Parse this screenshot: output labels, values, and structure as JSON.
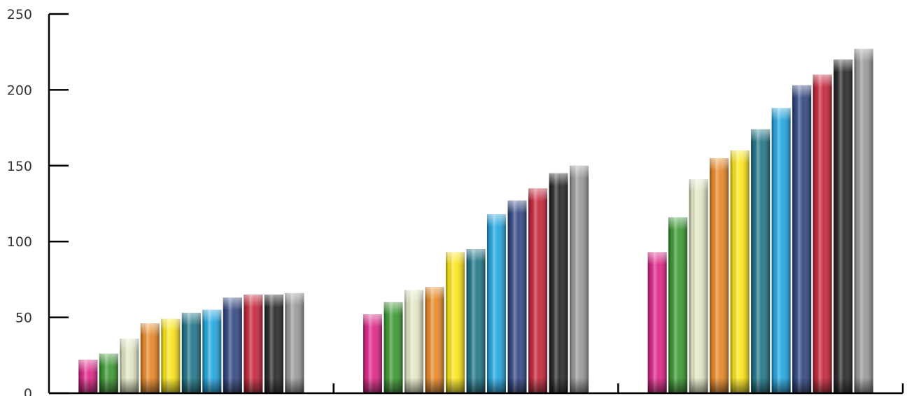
{
  "chart_data": {
    "type": "bar",
    "categories": [
      "",
      "",
      ""
    ],
    "series_colors": [
      "#e0288a",
      "#3e9a35",
      "#e4e8c6",
      "#ea8a28",
      "#fbe61a",
      "#23788a",
      "#25a8e2",
      "#354a86",
      "#c8283c",
      "#2b2b2b",
      "#9a9a9a"
    ],
    "series": [
      {
        "values": [
          22,
          52,
          93
        ]
      },
      {
        "values": [
          26,
          60,
          116
        ]
      },
      {
        "values": [
          36,
          68,
          141
        ]
      },
      {
        "values": [
          46,
          70,
          155
        ]
      },
      {
        "values": [
          49,
          93,
          160
        ]
      },
      {
        "values": [
          53,
          95,
          174
        ]
      },
      {
        "values": [
          55,
          118,
          188
        ]
      },
      {
        "values": [
          63,
          127,
          203
        ]
      },
      {
        "values": [
          65,
          135,
          210
        ]
      },
      {
        "values": [
          65,
          145,
          220
        ]
      },
      {
        "values": [
          66,
          150,
          227
        ]
      }
    ],
    "ylim": [
      0,
      250
    ],
    "yticks": [
      "0",
      "50",
      "100",
      "150",
      "200",
      "250"
    ],
    "grid": false,
    "legend": "none"
  }
}
